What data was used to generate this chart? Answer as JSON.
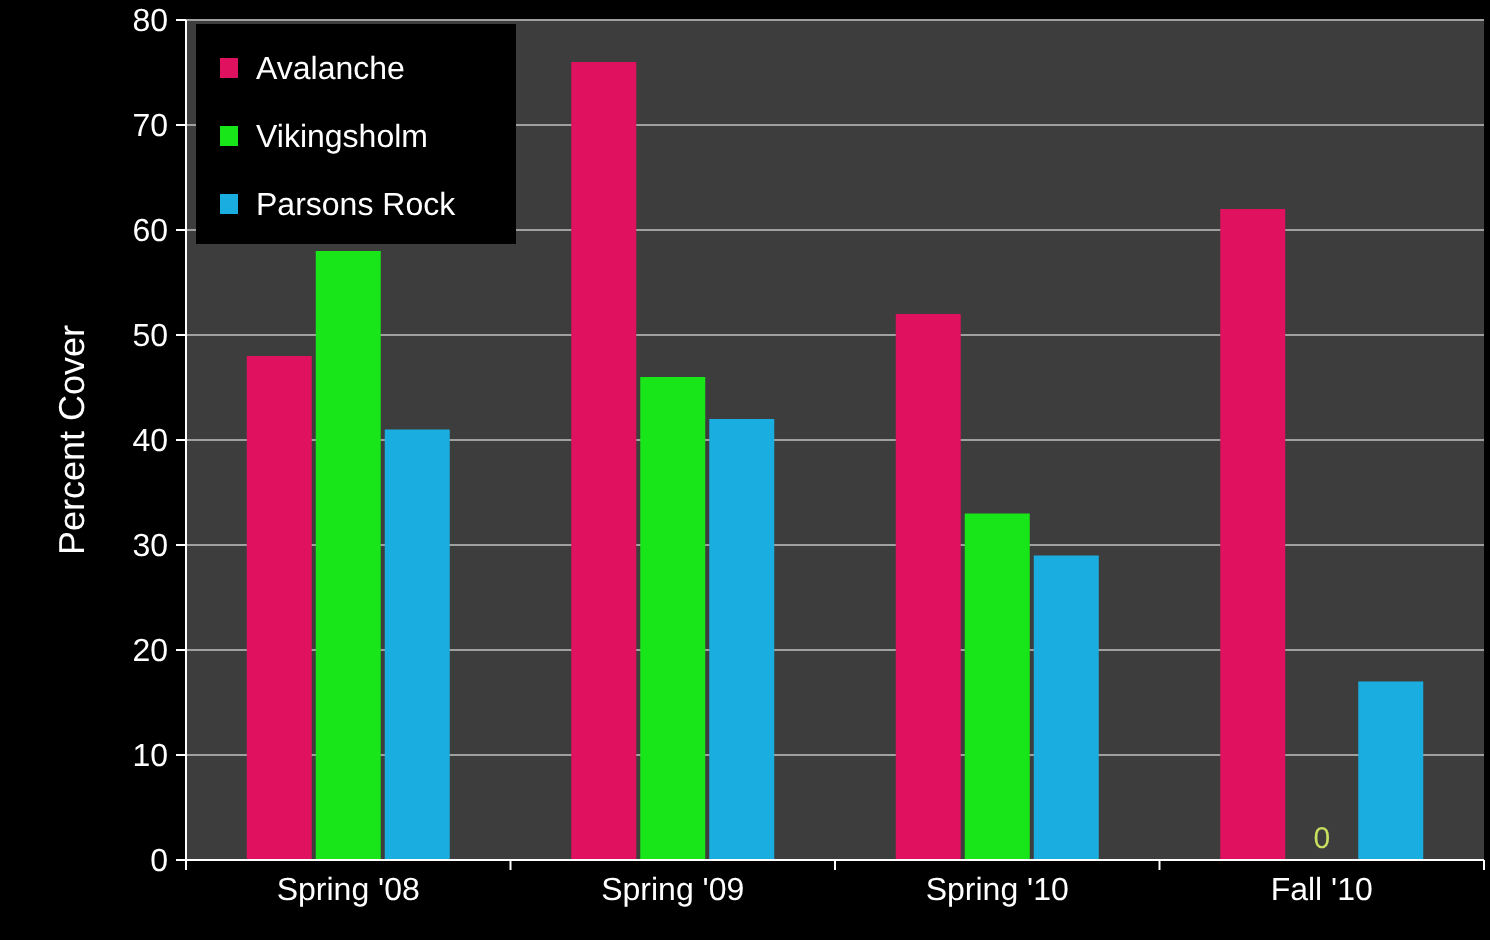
{
  "chart_data": {
    "type": "bar",
    "ylabel": "Percent Cover",
    "categories": [
      "Spring '08",
      "Spring '09",
      "Spring '10",
      "Fall '10"
    ],
    "series": [
      {
        "name": "Avalanche",
        "color": "#e0115f",
        "values": [
          48,
          76,
          52,
          62
        ]
      },
      {
        "name": "Vikingsholm",
        "color": "#19e619",
        "values": [
          58,
          46,
          33,
          0
        ],
        "value_labels": [
          null,
          null,
          null,
          "0"
        ]
      },
      {
        "name": "Parsons Rock",
        "color": "#1aaee0",
        "values": [
          41,
          42,
          29,
          17
        ]
      }
    ],
    "ylim": [
      0,
      80
    ],
    "yticks": [
      0,
      10,
      20,
      30,
      40,
      50,
      60,
      70,
      80
    ],
    "grid": "y",
    "legend": "top left"
  }
}
